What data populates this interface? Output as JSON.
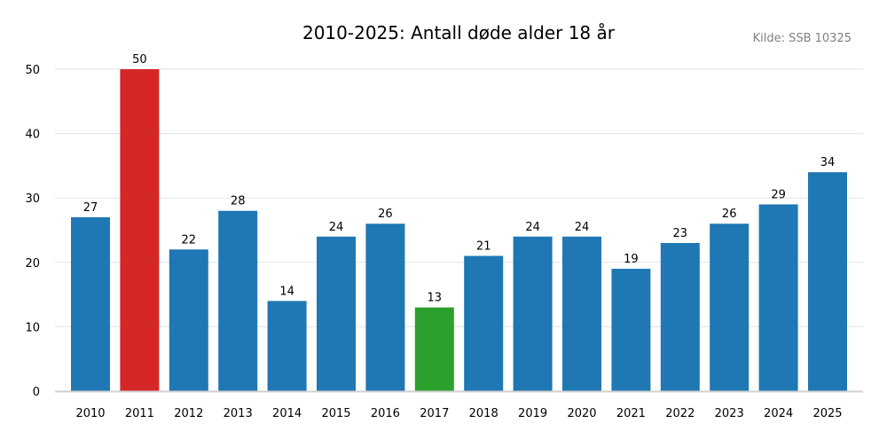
{
  "chart_data": {
    "type": "bar",
    "title": "2010-2025: Antall døde alder 18 år",
    "source": "Kilde: SSB 10325",
    "xlabel": "",
    "ylabel": "",
    "ylim": [
      0,
      50
    ],
    "yticks": [
      0,
      10,
      20,
      30,
      40,
      50
    ],
    "grid": true,
    "legend": "none",
    "categories": [
      "2010",
      "2011",
      "2012",
      "2013",
      "2014",
      "2015",
      "2016",
      "2017",
      "2018",
      "2019",
      "2020",
      "2021",
      "2022",
      "2023",
      "2024",
      "2025"
    ],
    "values": [
      27,
      50,
      22,
      28,
      14,
      24,
      26,
      13,
      21,
      24,
      24,
      19,
      23,
      26,
      29,
      34
    ],
    "colors": {
      "default": "#1f77b4",
      "max": "#d62728",
      "min": "#2ca02c",
      "grid": "#e6e6e6",
      "baseline": "#d0d0d0",
      "source_text": "#808080"
    },
    "highlight": {
      "max_category": "2011",
      "min_category": "2017"
    }
  }
}
